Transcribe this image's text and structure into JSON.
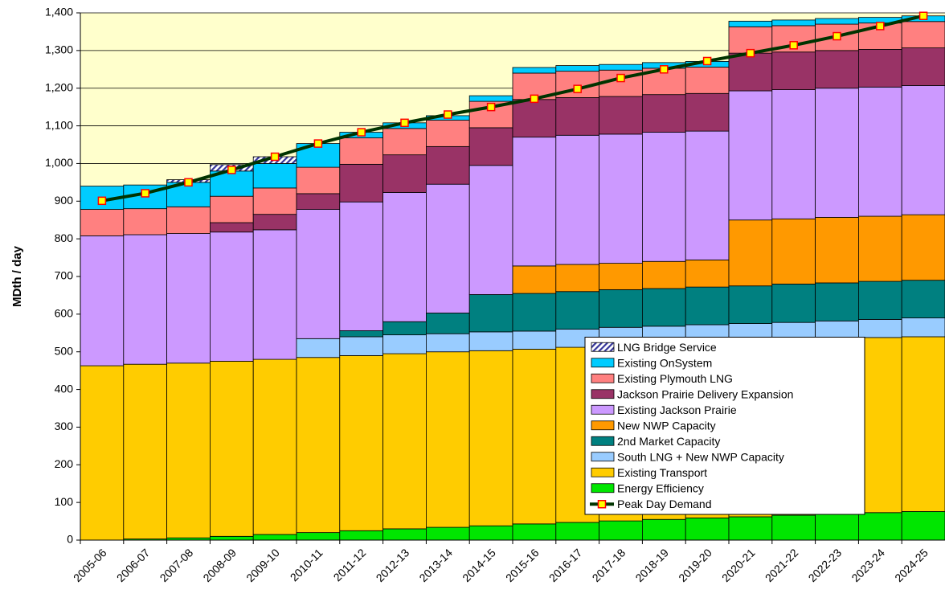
{
  "chart_data": {
    "type": "stacked_bar_line",
    "ylabel": "MDth / day",
    "categories": [
      "2005-06",
      "2006-07",
      "2007-08",
      "2008-09",
      "2009-10",
      "2010-11",
      "2011-12",
      "2012-13",
      "2013-14",
      "2014-15",
      "2015-16",
      "2016-17",
      "2017-18",
      "2018-19",
      "2019-20",
      "2020-21",
      "2021-22",
      "2022-23",
      "2023-24",
      "2024-25"
    ],
    "ylim": [
      0,
      1400
    ],
    "yticks": [
      0,
      100,
      200,
      300,
      400,
      500,
      600,
      700,
      800,
      900,
      {
        "value": 1000,
        "label": "1,000"
      },
      {
        "value": 1100,
        "label": "1,100"
      },
      {
        "value": 1200,
        "label": "1,200"
      },
      {
        "value": 1300,
        "label": "1,300"
      },
      {
        "value": 1400,
        "label": "1,400"
      }
    ],
    "grid": true,
    "legend": "lower right",
    "series": [
      {
        "name": "Energy Efficiency",
        "color": "#00e600",
        "values": [
          0,
          3,
          6,
          10,
          15,
          20,
          25,
          30,
          34,
          38,
          43,
          47,
          51,
          55,
          59,
          62,
          66,
          70,
          73,
          76
        ]
      },
      {
        "name": "Existing Transport",
        "color": "#ffcc00",
        "values": [
          463,
          464,
          464,
          465,
          465,
          465,
          465,
          465,
          466,
          465,
          464,
          465,
          465,
          465,
          465,
          466,
          466,
          466,
          465,
          464
        ]
      },
      {
        "name": "South LNG + New NWP Capacity",
        "color": "#99ccff",
        "values": [
          0,
          0,
          0,
          0,
          0,
          50,
          50,
          50,
          48,
          50,
          48,
          48,
          49,
          48,
          48,
          47,
          46,
          46,
          48,
          50
        ]
      },
      {
        "name": "2nd Market Capacity",
        "color": "#008080",
        "values": [
          0,
          0,
          0,
          0,
          0,
          0,
          16,
          35,
          55,
          99,
          100,
          100,
          100,
          100,
          100,
          100,
          102,
          101,
          101,
          100
        ]
      },
      {
        "name": "New NWP Capacity",
        "color": "#ff9900",
        "values": [
          0,
          0,
          0,
          0,
          0,
          0,
          0,
          0,
          0,
          0,
          73,
          72,
          70,
          72,
          72,
          175,
          173,
          174,
          173,
          174
        ]
      },
      {
        "name": "Existing Jackson Prairie",
        "color": "#cc99ff",
        "values": [
          345,
          344,
          344,
          343,
          344,
          343,
          342,
          343,
          342,
          343,
          342,
          343,
          343,
          343,
          342,
          343,
          343,
          343,
          343,
          343
        ]
      },
      {
        "name": "Jackson Prairie Delivery Expansion",
        "color": "#993366",
        "values": [
          0,
          0,
          0,
          25,
          41,
          42,
          100,
          100,
          100,
          100,
          100,
          100,
          100,
          100,
          100,
          100,
          100,
          100,
          100,
          100
        ]
      },
      {
        "name": "Existing Plymouth LNG",
        "color": "#ff8080",
        "values": [
          70,
          69,
          71,
          70,
          70,
          70,
          70,
          70,
          70,
          70,
          70,
          70,
          70,
          70,
          70,
          70,
          70,
          70,
          70,
          70
        ]
      },
      {
        "name": "Existing OnSystem",
        "color": "#00ccff",
        "values": [
          62,
          63,
          65,
          67,
          65,
          63,
          15,
          15,
          12,
          15,
          15,
          15,
          15,
          15,
          15,
          15,
          15,
          15,
          15,
          15
        ]
      },
      {
        "name": "LNG Bridge Service",
        "color": "#9999ff",
        "hatch": true,
        "values": [
          0,
          0,
          7,
          17,
          18,
          0,
          0,
          0,
          0,
          0,
          0,
          0,
          0,
          0,
          0,
          0,
          0,
          0,
          0,
          0
        ]
      },
      {
        "name": "Peak Day Demand",
        "type": "line",
        "color": "#003300",
        "marker_color": "#ffff00",
        "marker_edge": "#ff0000",
        "values": [
          901,
          921,
          950,
          983,
          1018,
          1053,
          1083,
          1108,
          1130,
          1150,
          1172,
          1198,
          1227,
          1250,
          1272,
          1293,
          1314,
          1338,
          1365,
          1392
        ]
      }
    ]
  }
}
